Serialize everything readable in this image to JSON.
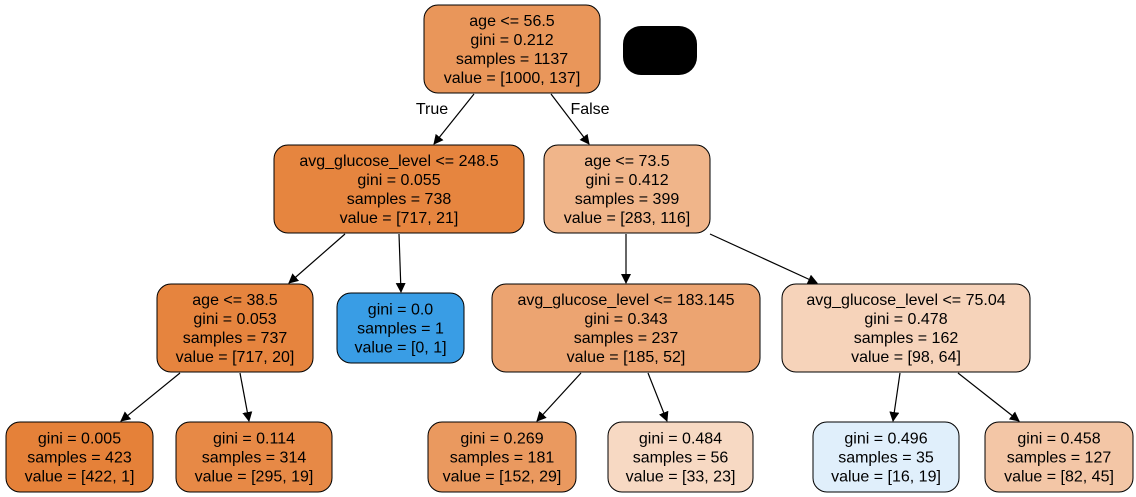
{
  "tree": {
    "nodes": [
      {
        "id": "root",
        "lines": [
          "age <= 56.5",
          "gini = 0.212",
          "samples = 1137",
          "value = [1000, 137]"
        ],
        "fill": "#e9965a"
      },
      {
        "id": "left",
        "lines": [
          "avg_glucose_level <= 248.5",
          "gini = 0.055",
          "samples = 738",
          "value = [717, 21]"
        ],
        "fill": "#e6853f"
      },
      {
        "id": "right",
        "lines": [
          "age <= 73.5",
          "gini = 0.412",
          "samples = 399",
          "value = [283, 116]"
        ],
        "fill": "#f0b58a"
      },
      {
        "id": "ll",
        "lines": [
          "age <= 38.5",
          "gini = 0.053",
          "samples = 737",
          "value = [717, 20]"
        ],
        "fill": "#e6843e"
      },
      {
        "id": "lr",
        "lines": [
          "gini = 0.0",
          "samples = 1",
          "value = [0, 1]"
        ],
        "fill": "#399de5"
      },
      {
        "id": "rl",
        "lines": [
          "avg_glucose_level <= 183.145",
          "gini = 0.343",
          "samples = 237",
          "value = [185, 52]"
        ],
        "fill": "#eca471"
      },
      {
        "id": "rr",
        "lines": [
          "avg_glucose_level <= 75.04",
          "gini = 0.478",
          "samples = 162",
          "value = [98, 64]"
        ],
        "fill": "#f6d3ba"
      },
      {
        "id": "lll",
        "lines": [
          "gini = 0.005",
          "samples = 423",
          "value = [422, 1]"
        ],
        "fill": "#e58139"
      },
      {
        "id": "llr",
        "lines": [
          "gini = 0.114",
          "samples = 314",
          "value = [295, 19]"
        ],
        "fill": "#e78946"
      },
      {
        "id": "rll",
        "lines": [
          "gini = 0.269",
          "samples = 181",
          "value = [152, 29]"
        ],
        "fill": "#ea995f"
      },
      {
        "id": "rlr",
        "lines": [
          "gini = 0.484",
          "samples = 56",
          "value = [33, 23]"
        ],
        "fill": "#f7d9c3"
      },
      {
        "id": "rrl",
        "lines": [
          "gini = 0.496",
          "samples = 35",
          "value = [16, 19]"
        ],
        "fill": "#e0effb"
      },
      {
        "id": "rrr",
        "lines": [
          "gini = 0.458",
          "samples = 127",
          "value = [82, 45]"
        ],
        "fill": "#f3c6a6"
      }
    ],
    "edges": [
      {
        "from": "root",
        "to": "left",
        "label": "True"
      },
      {
        "from": "root",
        "to": "right",
        "label": "False"
      },
      {
        "from": "left",
        "to": "ll",
        "label": ""
      },
      {
        "from": "left",
        "to": "lr",
        "label": ""
      },
      {
        "from": "right",
        "to": "rl",
        "label": ""
      },
      {
        "from": "right",
        "to": "rr",
        "label": ""
      },
      {
        "from": "ll",
        "to": "lll",
        "label": ""
      },
      {
        "from": "ll",
        "to": "llr",
        "label": ""
      },
      {
        "from": "rl",
        "to": "rll",
        "label": ""
      },
      {
        "from": "rl",
        "to": "rlr",
        "label": ""
      },
      {
        "from": "rr",
        "to": "rrl",
        "label": ""
      },
      {
        "from": "rr",
        "to": "rrr",
        "label": ""
      }
    ],
    "legend_box_fill": "#000000",
    "border_color": "#000000"
  }
}
